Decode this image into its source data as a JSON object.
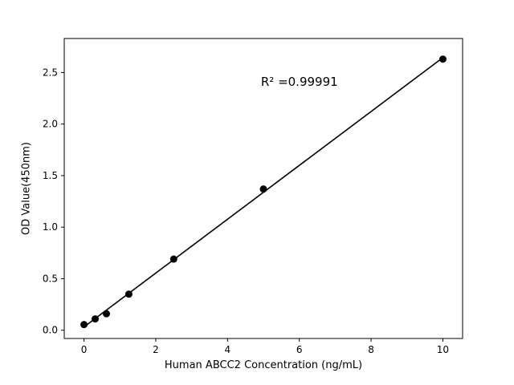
{
  "figure": {
    "background": "#ffffff"
  },
  "chart_data": {
    "type": "scatter",
    "title": "",
    "xlabel": "Human ABCC2 Concentration (ng/mL)",
    "ylabel": "OD Value(450nm)",
    "x": [
      0,
      0.3125,
      0.625,
      1.25,
      2.5,
      5,
      10
    ],
    "y": [
      0.055,
      0.11,
      0.16,
      0.35,
      0.69,
      1.37,
      2.63
    ],
    "fit_line": {
      "slope": 0.2612,
      "intercept": 0.032,
      "x_start": 0,
      "x_end": 10
    },
    "annotation": {
      "text": "R² =0.99991",
      "x": 4.93,
      "y": 2.41
    },
    "xlim": [
      -0.55,
      10.55
    ],
    "ylim": [
      -0.08,
      2.83
    ],
    "xticks": [
      0,
      2,
      4,
      6,
      8,
      10
    ],
    "yticks": [
      0.0,
      0.5,
      1.0,
      1.5,
      2.0,
      2.5
    ],
    "grid": false,
    "legend": "none",
    "marker_color": "#000000",
    "line_color": "#000000",
    "axis_color": "#000000"
  }
}
